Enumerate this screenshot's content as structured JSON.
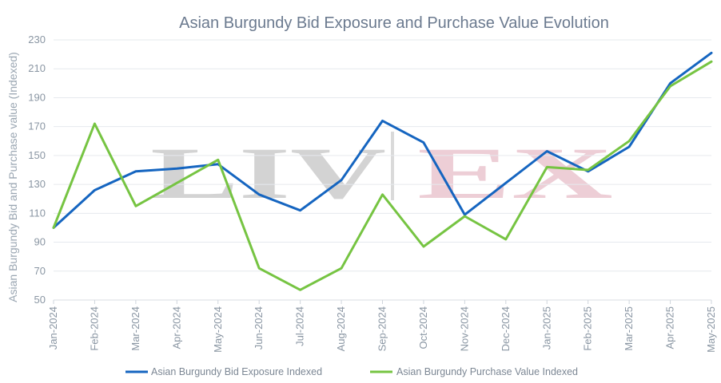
{
  "chart_data": {
    "type": "line",
    "title": "Asian Burgundy Bid Exposure and Purchase Value Evolution",
    "xlabel": "",
    "ylabel": "Asian Burgundy Bid and Purchase value (Indexed)",
    "ylim": [
      50,
      230
    ],
    "yticks": [
      50,
      70,
      90,
      110,
      130,
      150,
      170,
      190,
      210,
      230
    ],
    "grid": "horizontal",
    "legend_position": "bottom",
    "watermark": "LIV-EX",
    "categories": [
      "Jan-2024",
      "Feb-2024",
      "Mar-2024",
      "Apr-2024",
      "May-2024",
      "Jun-2024",
      "Jul-2024",
      "Aug-2024",
      "Sep-2024",
      "Oct-2024",
      "Nov-2024",
      "Dec-2024",
      "Jan-2025",
      "Feb-2025",
      "Mar-2025",
      "Apr-2025",
      "May-2025"
    ],
    "series": [
      {
        "name": "Asian Burgundy Bid Exposure Indexed",
        "color": "#1565c0",
        "values": [
          100,
          126,
          139,
          141,
          144,
          123,
          112,
          133,
          174,
          159,
          109,
          131,
          153,
          139,
          156,
          200,
          221
        ]
      },
      {
        "name": "Asian Burgundy Purchase Value Indexed",
        "color": "#76c442",
        "values": [
          100,
          172,
          115,
          131,
          147,
          72,
          57,
          72,
          123,
          87,
          108,
          92,
          142,
          140,
          160,
          198,
          215
        ]
      }
    ]
  }
}
